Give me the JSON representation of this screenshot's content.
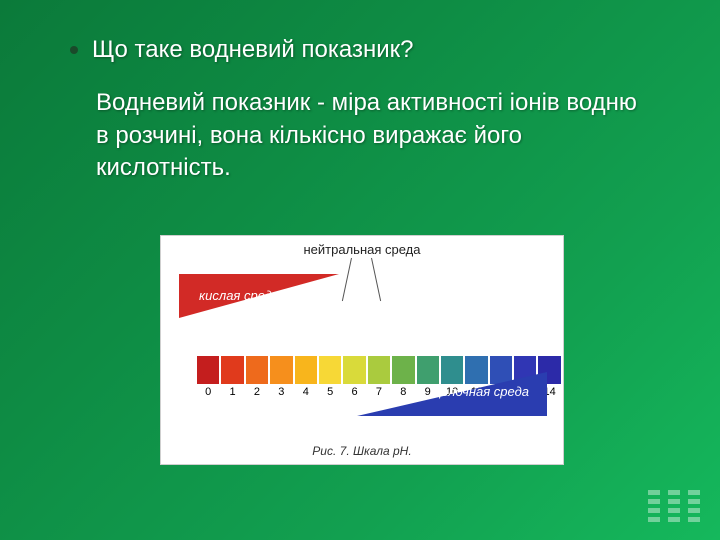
{
  "text": {
    "heading": "Що таке водневий показник?",
    "body": "Водневий показник - міра активності  іонів водню в розчині, вона кількісно виражає його кислотність."
  },
  "bullet_color": "#1a4a2a",
  "figure": {
    "background": "#ffffff",
    "labels": {
      "neutral": "нейтральная среда",
      "acid": "кислая среда",
      "base": "щелочная среда"
    },
    "label_style": {
      "neutral_color": "#222222",
      "acid_color": "#ffffff",
      "base_color": "#ffffff",
      "fontsize": 13
    },
    "triangles": {
      "acid_color": "#d22a26",
      "base_color": "#2a3db0"
    },
    "scale": {
      "numbers": [
        "0",
        "1",
        "2",
        "3",
        "4",
        "5",
        "6",
        "7",
        "8",
        "9",
        "10",
        "11",
        "12",
        "13",
        "14"
      ],
      "colors": [
        "#c41e1e",
        "#e03a1c",
        "#ee6a1c",
        "#f68f1c",
        "#f8b51c",
        "#f7d836",
        "#d9da3a",
        "#aacb3e",
        "#6db24a",
        "#3f9f6e",
        "#2f8e8e",
        "#2f6fb0",
        "#2f4fb6",
        "#3036b4",
        "#2c2aa8"
      ],
      "swatch_height": 28,
      "number_fontsize": 11,
      "number_color": "#000000"
    },
    "caption": "Рис. 7. Шкала pH.",
    "caption_style": {
      "fontsize": 12,
      "color": "#333333",
      "italic": true
    }
  },
  "background_gradient": [
    "#0b7a3a",
    "#0e8c44",
    "#12a050",
    "#15b85c"
  ],
  "text_color": "#ffffff",
  "heading_fontsize": 24,
  "body_fontsize": 24
}
